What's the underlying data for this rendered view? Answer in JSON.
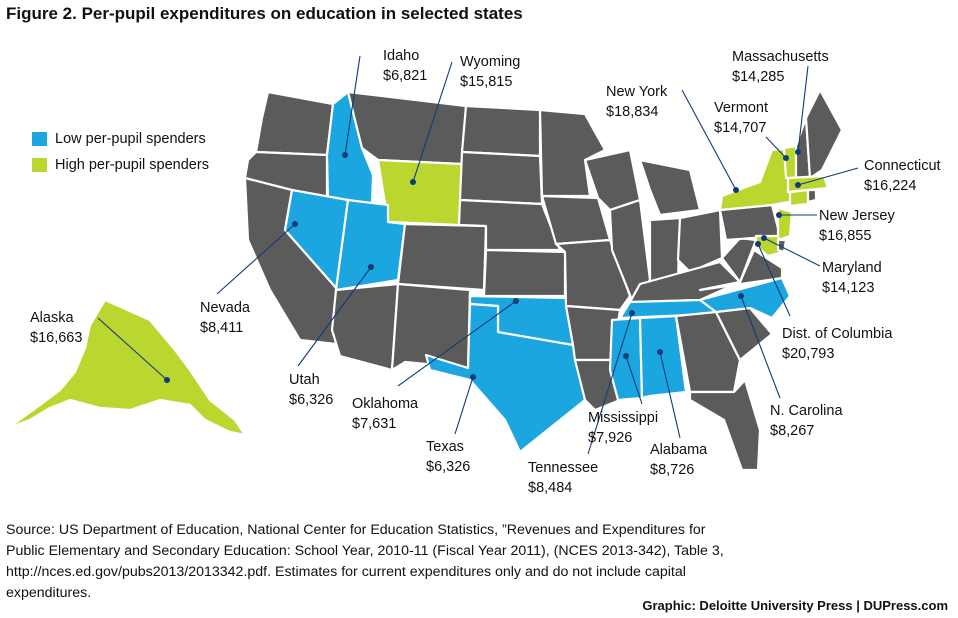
{
  "title": "Figure 2. Per-pupil expenditures on education in selected states",
  "legend": [
    {
      "label": "Low per-pupil spenders",
      "color": "#1ba6e0"
    },
    {
      "label": "High per-pupil spenders",
      "color": "#bcd630"
    }
  ],
  "colors": {
    "other_states": "#5b5b5b",
    "border": "#ffffff",
    "leader": "#0d3c78"
  },
  "states": {
    "idaho": {
      "name": "Idaho",
      "value": "$6,821",
      "category": "low"
    },
    "wyoming": {
      "name": "Wyoming",
      "value": "$15,815",
      "category": "high"
    },
    "new_york": {
      "name": "New York",
      "value": "$18,834",
      "category": "high"
    },
    "massachusetts": {
      "name": "Massachusetts",
      "value": "$14,285",
      "category": "high"
    },
    "vermont": {
      "name": "Vermont",
      "value": "$14,707",
      "category": "high"
    },
    "connecticut": {
      "name": "Connecticut",
      "value": "$16,224",
      "category": "high"
    },
    "new_jersey": {
      "name": "New Jersey",
      "value": "$16,855",
      "category": "high"
    },
    "maryland": {
      "name": "Maryland",
      "value": "$14,123",
      "category": "high"
    },
    "dc": {
      "name": "Dist. of Columbia",
      "value": "$20,793",
      "category": "high"
    },
    "north_carolina": {
      "name": "N. Carolina",
      "value": "$8,267",
      "category": "low"
    },
    "alabama": {
      "name": "Alabama",
      "value": "$8,726",
      "category": "low"
    },
    "mississippi": {
      "name": "Mississippi",
      "value": "$7,926",
      "category": "low"
    },
    "tennessee": {
      "name": "Tennessee",
      "value": "$8,484",
      "category": "low"
    },
    "texas": {
      "name": "Texas",
      "value": "$6,326",
      "category": "low"
    },
    "oklahoma": {
      "name": "Oklahoma",
      "value": "$7,631",
      "category": "low"
    },
    "utah": {
      "name": "Utah",
      "value": "$6,326",
      "category": "low"
    },
    "nevada": {
      "name": "Nevada",
      "value": "$8,411",
      "category": "low"
    },
    "alaska": {
      "name": "Alaska",
      "value": "$16,663",
      "category": "high"
    }
  },
  "source": "Source: US Department of Education, National Center for Education Statistics, ”Revenues and Expenditures for Public Elementary and Secondary Education: School Year, 2010-11 (Fiscal Year 2011), (NCES 2013-342), Table 3, http://nces.ed.gov/pubs2013/2013342.pdf. Estimates for current expenditures only and do not include capital expenditures.",
  "credit": "Graphic: Deloitte University Press  |  DUPress.com"
}
